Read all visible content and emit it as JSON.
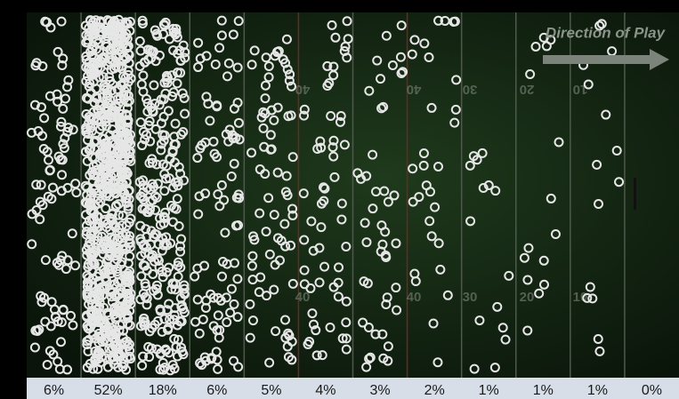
{
  "chart_data": {
    "type": "zones",
    "annotation": "Direction of Play",
    "yard_labels": [
      "40",
      "40",
      "30",
      "20",
      "10"
    ],
    "categories": [
      null,
      null,
      null,
      null,
      null,
      null,
      null,
      null,
      null,
      null,
      null,
      null
    ],
    "values": [
      6,
      52,
      18,
      6,
      5,
      4,
      3,
      2,
      1,
      1,
      1,
      0
    ],
    "value_labels": [
      "6%",
      "52%",
      "18%",
      "6%",
      "5%",
      "4%",
      "3%",
      "2%",
      "1%",
      "1%",
      "1%",
      "0%"
    ],
    "color": "#e6e6e6"
  }
}
